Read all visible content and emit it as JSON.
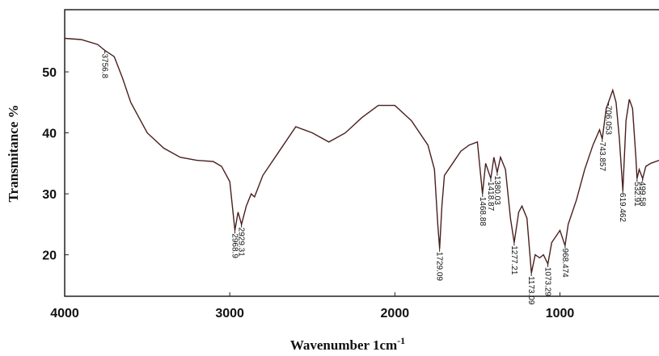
{
  "chart_data": {
    "type": "line",
    "x_label": "Wavenumber 1cm",
    "x_label_sup": "-1",
    "y_label": "Transmitance %",
    "xlim": [
      4000,
      400
    ],
    "xticks": [
      4000,
      3000,
      2000,
      1000
    ],
    "ylim": [
      13.2,
      60.2
    ],
    "yticks": [
      20,
      30,
      40,
      50
    ],
    "series": [
      {
        "color": "#4a1f1f",
        "x": [
          4000,
          3900,
          3800,
          3756,
          3700,
          3650,
          3600,
          3500,
          3400,
          3300,
          3200,
          3100,
          3050,
          3000,
          2969,
          2950,
          2929,
          2900,
          2870,
          2850,
          2800,
          2700,
          2600,
          2500,
          2400,
          2300,
          2200,
          2100,
          2000,
          1900,
          1800,
          1760,
          1740,
          1729,
          1715,
          1700,
          1650,
          1600,
          1550,
          1500,
          1469,
          1450,
          1419,
          1400,
          1380,
          1360,
          1330,
          1300,
          1277,
          1250,
          1230,
          1200,
          1173,
          1150,
          1123,
          1100,
          1073,
          1050,
          1000,
          969,
          950,
          900,
          850,
          800,
          760,
          744,
          720,
          706,
          680,
          660,
          640,
          619,
          600,
          580,
          560,
          540,
          533,
          520,
          499,
          480,
          450,
          400
        ],
        "values": [
          55.5,
          55.3,
          54.5,
          53.5,
          52.5,
          49,
          45,
          40,
          37.5,
          36,
          35.5,
          35.3,
          34.5,
          32,
          24,
          27,
          25,
          28,
          30,
          29.5,
          33,
          37,
          41,
          40,
          38.5,
          40,
          42.5,
          44.5,
          44.5,
          42,
          38,
          34,
          25,
          21,
          28,
          33,
          35,
          37,
          38,
          38.5,
          30,
          35,
          32.5,
          36,
          33.5,
          36,
          34,
          26,
          22,
          27,
          28,
          26,
          17,
          20,
          19.5,
          20,
          18.5,
          22,
          24,
          21.5,
          25,
          29,
          34,
          38,
          40.5,
          39,
          44,
          45,
          47,
          45,
          39,
          30.5,
          42,
          45.5,
          44,
          36,
          32.5,
          34,
          32.5,
          34.5,
          35,
          35.5
        ]
      }
    ],
    "peak_labels": [
      3756.8,
      2968.9,
      2929.31,
      1729.09,
      1468.88,
      1418.87,
      1380.03,
      1277.21,
      1173.09,
      1073.29,
      968.474,
      743.857,
      706.053,
      619.462,
      532.91,
      499.58
    ]
  }
}
